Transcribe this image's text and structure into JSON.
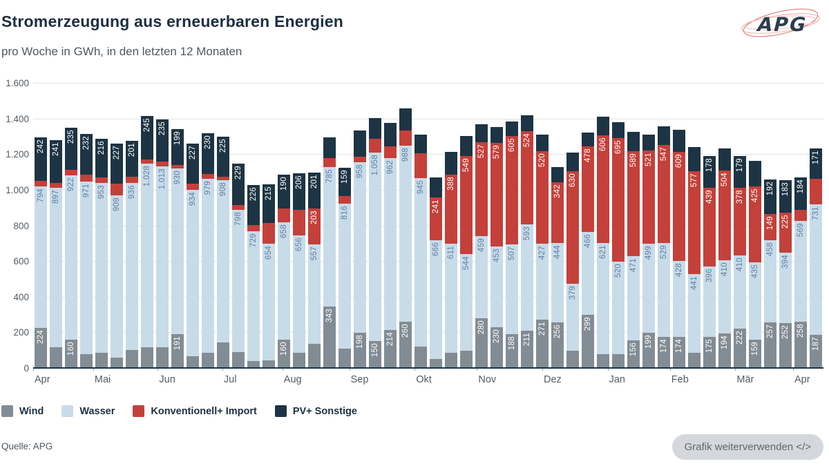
{
  "header": {
    "title": "Stromerzeugung aus erneuerbaren Energien",
    "subtitle": "pro Woche in GWh, in den letzten 12 Monaten"
  },
  "logo": {
    "text": "APG"
  },
  "footer": {
    "source": "Quelle: APG",
    "button_label": "Grafik weiterverwenden </>"
  },
  "chart_data": {
    "type": "bar",
    "stacked": true,
    "title": "Stromerzeugung aus erneuerbaren Energien",
    "subtitle": "pro Woche in GWh, in den letzten 12 Monaten",
    "unit": "GWh",
    "ylim": [
      0,
      1600
    ],
    "grid": true,
    "legend_position": "bottom",
    "yticks": [
      [
        0,
        "0"
      ],
      [
        200,
        "200"
      ],
      [
        400,
        "400"
      ],
      [
        600,
        "600"
      ],
      [
        800,
        "800"
      ],
      [
        1000,
        "1.000"
      ],
      [
        1200,
        "1.200"
      ],
      [
        1400,
        "1.400"
      ],
      [
        1600,
        "1.600"
      ]
    ],
    "months": [
      [
        0,
        "Apr"
      ],
      [
        3.95,
        "Mai"
      ],
      [
        8.2,
        "Jun"
      ],
      [
        12.45,
        "Jul"
      ],
      [
        16.4,
        "Aug"
      ],
      [
        20.8,
        "Sep"
      ],
      [
        25.1,
        "Okt"
      ],
      [
        29.2,
        "Nov"
      ],
      [
        33.5,
        "Dez"
      ],
      [
        37.8,
        "Jan"
      ],
      [
        41.9,
        "Feb"
      ],
      [
        46.2,
        "Mär"
      ],
      [
        50,
        "Apr"
      ]
    ],
    "series": [
      {
        "key": "wind",
        "name": "Wind",
        "color": "#828c94",
        "label_color": "#ffffff"
      },
      {
        "key": "wasser",
        "name": "Wasser",
        "color": "#c8dbe9",
        "label_color": "#5c80a0"
      },
      {
        "key": "konv",
        "name": "Konventionell+ Import",
        "color": "#c4403a",
        "label_color": "#ffffff"
      },
      {
        "key": "pv",
        "name": "PV+ Sonstige",
        "color": "#1d3444",
        "label_color": "#ffffff"
      }
    ],
    "weeks_format": "[wind, wasser, konventionell_import, pv_sonstige, label_wind, label_wasser, label_konv, label_pv] — null label = value not printed on chart (value estimated from bar height)",
    "weeks": [
      [
        224,
        794,
        33,
        242,
        "224",
        "794",
        null,
        "242"
      ],
      [
        116,
        897,
        25,
        241,
        null,
        "897",
        null,
        "241"
      ],
      [
        160,
        922,
        30,
        235,
        "160",
        "922",
        null,
        "235"
      ],
      [
        77,
        971,
        35,
        232,
        null,
        "971",
        null,
        "232"
      ],
      [
        87,
        953,
        30,
        216,
        null,
        "953",
        null,
        "216"
      ],
      [
        59,
        909,
        65,
        227,
        null,
        "909",
        null,
        "227"
      ],
      [
        101,
        936,
        35,
        201,
        null,
        "936",
        null,
        "201"
      ],
      [
        117,
        1028,
        25,
        245,
        null,
        "1.028",
        null,
        "245"
      ],
      [
        117,
        1013,
        30,
        235,
        null,
        "1.013",
        null,
        "235"
      ],
      [
        191,
        930,
        20,
        199,
        "191",
        "930",
        null,
        "199"
      ],
      [
        65,
        934,
        35,
        227,
        null,
        "934",
        null,
        "227"
      ],
      [
        84,
        979,
        25,
        230,
        null,
        "979",
        null,
        "230"
      ],
      [
        144,
        908,
        20,
        225,
        null,
        "908",
        null,
        "225"
      ],
      [
        90,
        798,
        28,
        229,
        null,
        "798",
        null,
        "229"
      ],
      [
        37,
        729,
        35,
        226,
        null,
        "729",
        null,
        "226"
      ],
      [
        44,
        654,
        117,
        215,
        null,
        "654",
        null,
        "215"
      ],
      [
        160,
        658,
        76,
        190,
        "160",
        "658",
        null,
        "190"
      ],
      [
        87,
        656,
        145,
        206,
        null,
        "656",
        null,
        "206"
      ],
      [
        135,
        557,
        203,
        201,
        null,
        "557",
        "203",
        "201"
      ],
      [
        343,
        785,
        48,
        120,
        "343",
        "785",
        null,
        null
      ],
      [
        108,
        816,
        41,
        159,
        null,
        "816",
        null,
        "159"
      ],
      [
        198,
        958,
        30,
        148,
        "198",
        "958",
        null,
        null
      ],
      [
        150,
        1058,
        80,
        115,
        "150",
        "1.058",
        null,
        null
      ],
      [
        214,
        962,
        69,
        130,
        "214",
        "962",
        null,
        null
      ],
      [
        260,
        988,
        83,
        125,
        "260",
        "988",
        null,
        null
      ],
      [
        121,
        945,
        138,
        105,
        null,
        "945",
        null,
        null
      ],
      [
        51,
        666,
        241,
        110,
        null,
        "666",
        "241",
        null
      ],
      [
        87,
        611,
        388,
        125,
        null,
        "611",
        "388",
        null
      ],
      [
        97,
        544,
        549,
        110,
        null,
        "544",
        "549",
        null
      ],
      [
        280,
        459,
        527,
        100,
        "280",
        "459",
        "527",
        null
      ],
      [
        230,
        453,
        579,
        90,
        "230",
        "453",
        "579",
        null
      ],
      [
        188,
        507,
        605,
        83,
        "188",
        "507",
        "605",
        null
      ],
      [
        211,
        593,
        524,
        90,
        "211",
        "593",
        "524",
        null
      ],
      [
        271,
        427,
        520,
        90,
        "271",
        "427",
        "520",
        null
      ],
      [
        256,
        444,
        342,
        85,
        "256",
        "444",
        "342",
        null
      ],
      [
        95,
        379,
        630,
        105,
        null,
        "379",
        "630",
        null
      ],
      [
        299,
        466,
        478,
        80,
        "299",
        "466",
        "478",
        null
      ],
      [
        79,
        621,
        606,
        104,
        null,
        "621",
        "606",
        null
      ],
      [
        76,
        520,
        695,
        90,
        null,
        "520",
        "695",
        null
      ],
      [
        156,
        471,
        589,
        110,
        "156",
        "471",
        "589",
        null
      ],
      [
        199,
        499,
        521,
        92,
        "199",
        "499",
        "521",
        null
      ],
      [
        174,
        529,
        547,
        105,
        "174",
        "529",
        "547",
        null
      ],
      [
        174,
        428,
        609,
        125,
        "174",
        "428",
        "609",
        null
      ],
      [
        85,
        441,
        577,
        135,
        null,
        "441",
        "577",
        null
      ],
      [
        175,
        396,
        439,
        178,
        "175",
        "396",
        "439",
        "178"
      ],
      [
        194,
        410,
        504,
        125,
        "194",
        "410",
        "504",
        null
      ],
      [
        222,
        410,
        378,
        179,
        "222",
        "410",
        "378",
        "179"
      ],
      [
        159,
        435,
        425,
        145,
        "159",
        "435",
        "425",
        null
      ],
      [
        257,
        458,
        149,
        192,
        "257",
        "458",
        "149",
        "192"
      ],
      [
        252,
        394,
        225,
        183,
        "252",
        "394",
        "225",
        "183"
      ],
      [
        258,
        569,
        60,
        184,
        "258",
        "569",
        null,
        "184"
      ],
      [
        187,
        731,
        145,
        171,
        "187",
        "731",
        null,
        "171"
      ]
    ]
  }
}
